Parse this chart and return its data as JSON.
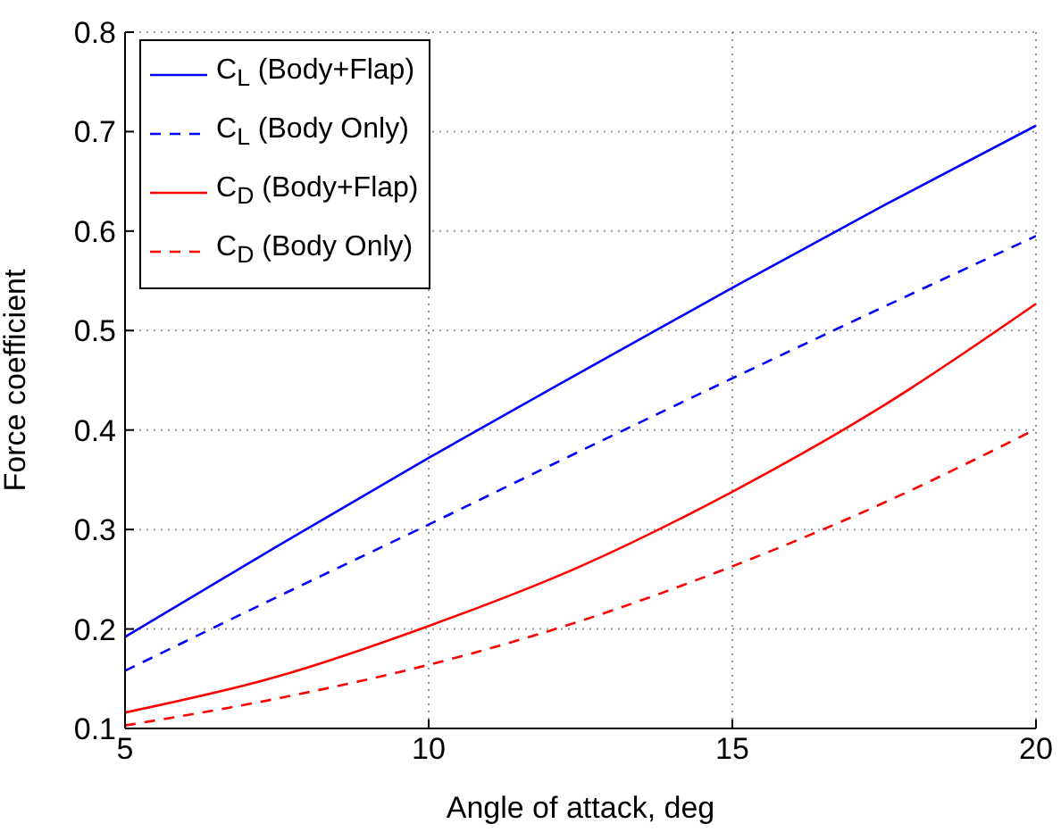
{
  "chart_data": {
    "type": "line",
    "xlabel": "Angle of attack, deg",
    "ylabel": "Force coefficient",
    "x": [
      5,
      7.5,
      10,
      12.5,
      15,
      17.5,
      20
    ],
    "xlim": [
      5,
      20
    ],
    "xticks": [
      5,
      10,
      15,
      20
    ],
    "ylim": [
      0.1,
      0.8
    ],
    "yticks": [
      0.1,
      0.2,
      0.3,
      0.4,
      0.5,
      0.6,
      0.7,
      0.8
    ],
    "grid": true,
    "legend": "top left",
    "marker": "none",
    "series": [
      {
        "name": "C$_{L}$ (Body+Flap)",
        "color": "#0000ff",
        "line_style": "solid",
        "values": [
          0.192,
          0.283,
          0.372,
          0.458,
          0.543,
          0.626,
          0.706
        ]
      },
      {
        "name": "C$_{L}$ (Body Only)",
        "color": "#0000ff",
        "line_style": "dashed",
        "values": [
          0.158,
          0.232,
          0.305,
          0.379,
          0.452,
          0.524,
          0.595
        ]
      },
      {
        "name": "C$_{D}$ (Body+Flap)",
        "color": "#ff0000",
        "line_style": "solid",
        "values": [
          0.116,
          0.152,
          0.203,
          0.263,
          0.338,
          0.425,
          0.527
        ]
      },
      {
        "name": "C$_{D}$ (Body Only)",
        "color": "#ff0000",
        "line_style": "dashed",
        "values": [
          0.103,
          0.13,
          0.164,
          0.208,
          0.263,
          0.327,
          0.401
        ]
      }
    ]
  }
}
